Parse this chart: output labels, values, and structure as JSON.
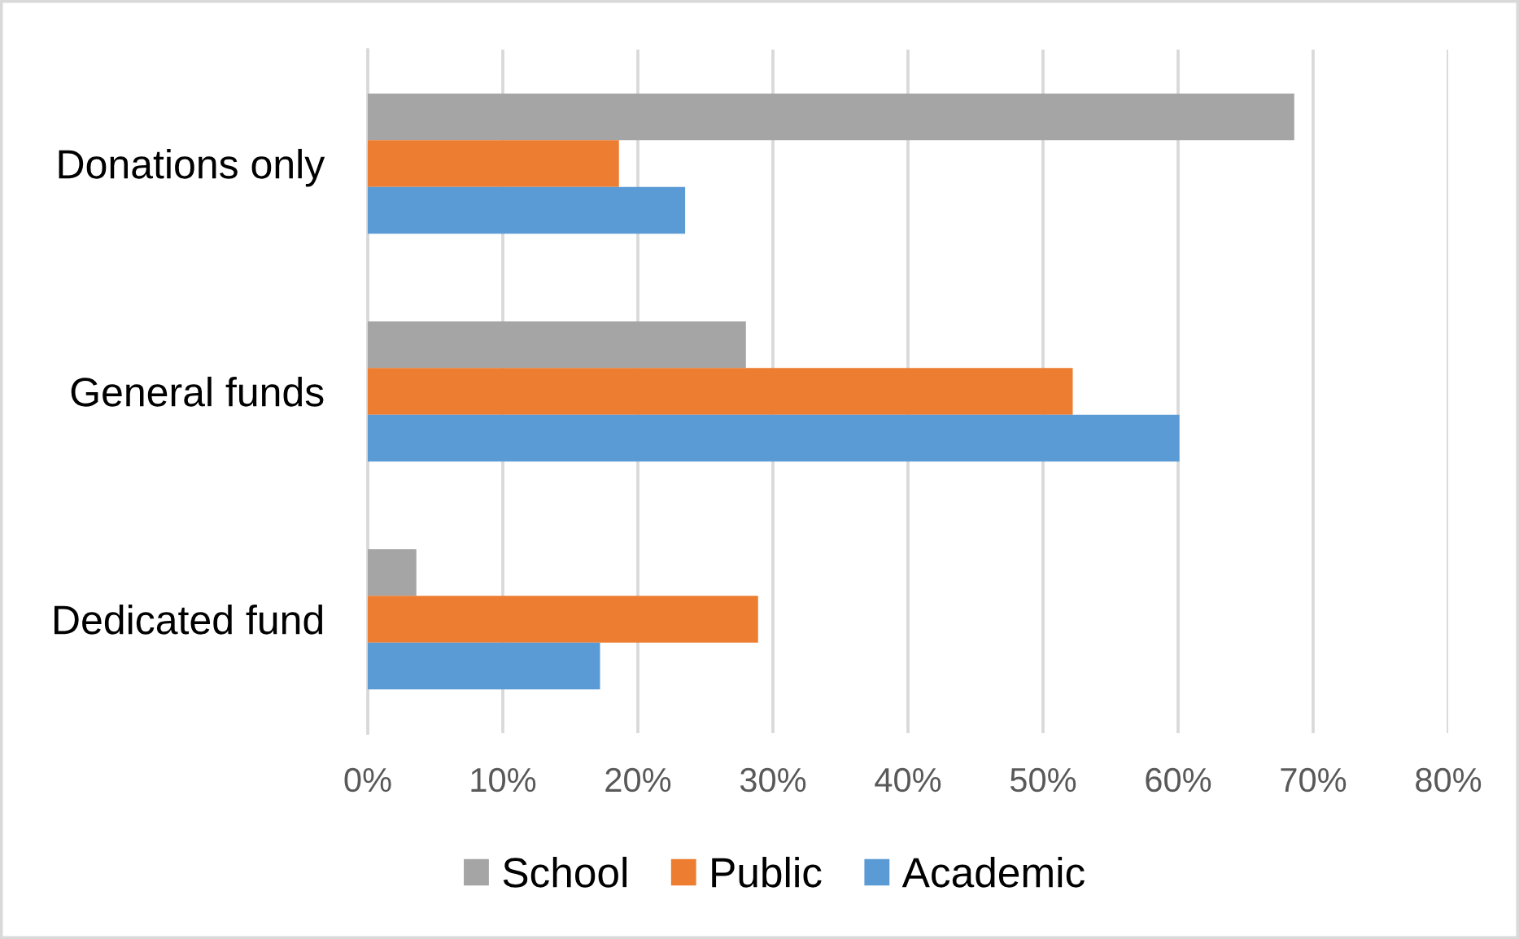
{
  "chart_data": {
    "type": "bar",
    "orientation": "horizontal",
    "categories": [
      "Donations only",
      "General funds",
      "Dedicated fund"
    ],
    "series": [
      {
        "name": "School",
        "color": "#a5a5a5",
        "values": [
          68.6,
          28.0,
          3.6
        ]
      },
      {
        "name": "Public",
        "color": "#ed7d31",
        "values": [
          18.6,
          52.2,
          28.9
        ]
      },
      {
        "name": "Academic",
        "color": "#5b9bd5",
        "values": [
          23.5,
          60.1,
          17.2
        ]
      }
    ],
    "xlim": [
      0,
      80
    ],
    "xticks": [
      {
        "value": 0,
        "label": "0%"
      },
      {
        "value": 10,
        "label": "10%"
      },
      {
        "value": 20,
        "label": "20%"
      },
      {
        "value": 30,
        "label": "30%"
      },
      {
        "value": 40,
        "label": "40%"
      },
      {
        "value": 50,
        "label": "50%"
      },
      {
        "value": 60,
        "label": "60%"
      },
      {
        "value": 70,
        "label": "70%"
      },
      {
        "value": 80,
        "label": "80%"
      }
    ],
    "grid": "x",
    "legend": "bottom"
  }
}
